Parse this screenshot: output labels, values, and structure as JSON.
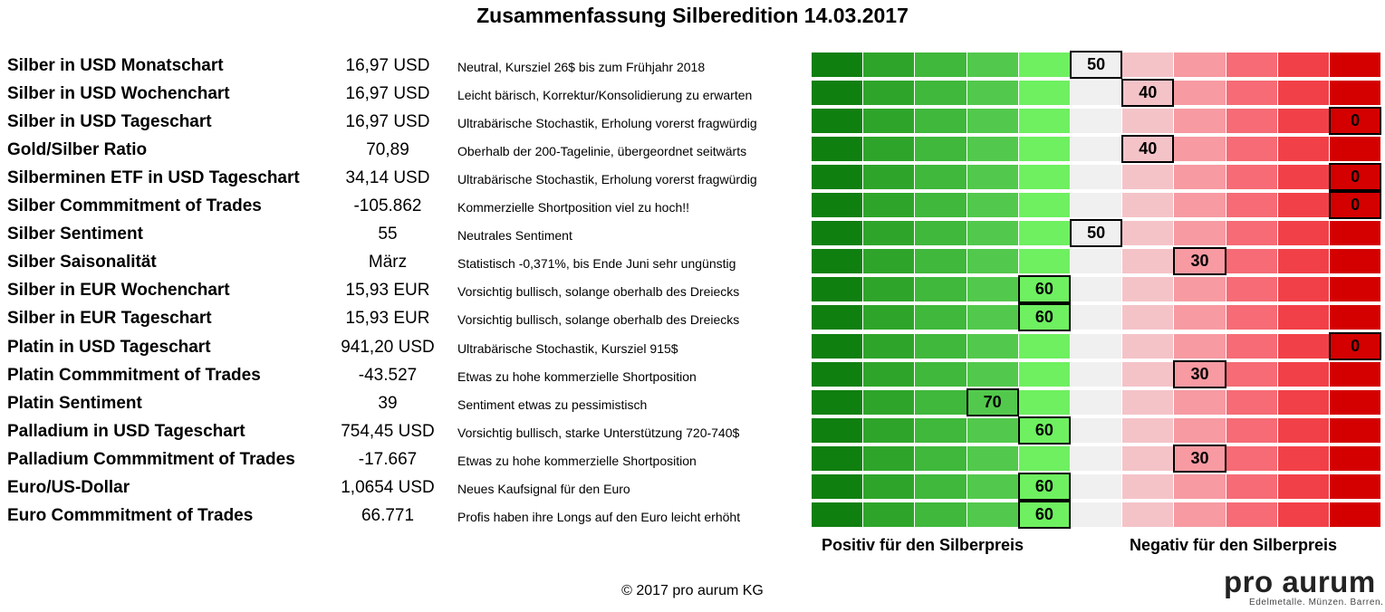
{
  "title": "Zusammenfassung Silberedition 14.03.2017",
  "scale_colors": [
    "#0f7f0f",
    "#2ea52a",
    "#3fb83b",
    "#52c94c",
    "#6ef060",
    "#f0f0f0",
    "#f4c3c8",
    "#f79aa2",
    "#f66b75",
    "#f24048",
    "#d40000"
  ],
  "scale_values": [
    100,
    90,
    80,
    70,
    60,
    50,
    40,
    30,
    20,
    10,
    0
  ],
  "rows": [
    {
      "label": "Silber in USD Monatschart",
      "value": "16,97 USD",
      "comment": "Neutral, Kursziel 26$ bis zum Frühjahr 2018",
      "score": "50"
    },
    {
      "label": "Silber in USD Wochenchart",
      "value": "16,97 USD",
      "comment": "Leicht bärisch, Korrektur/Konsolidierung zu erwarten",
      "score": "40"
    },
    {
      "label": "Silber in USD Tageschart",
      "value": "16,97 USD",
      "comment": "Ultrabärische Stochastik, Erholung vorerst fragwürdig",
      "score": "0"
    },
    {
      "label": "Gold/Silber Ratio",
      "value": "70,89",
      "comment": "Oberhalb der 200-Tagelinie, übergeordnet seitwärts",
      "score": "40"
    },
    {
      "label": "Silberminen ETF in USD Tageschart",
      "value": "34,14 USD",
      "comment": "Ultrabärische Stochastik, Erholung vorerst fragwürdig",
      "score": "0"
    },
    {
      "label": "Silber Commmitment of Trades",
      "value": "-105.862",
      "comment": "Kommerzielle Shortposition viel zu hoch!!",
      "score": "0"
    },
    {
      "label": "Silber Sentiment",
      "value": "55",
      "comment": "Neutrales Sentiment",
      "score": "50"
    },
    {
      "label": "Silber Saisonalität",
      "value": "März",
      "comment": "Statistisch -0,371%, bis Ende Juni sehr ungünstig",
      "score": "30"
    },
    {
      "label": "Silber in EUR Wochenchart",
      "value": "15,93 EUR",
      "comment": "Vorsichtig bullisch, solange oberhalb des Dreiecks",
      "score": "60"
    },
    {
      "label": "Silber in EUR Tageschart",
      "value": "15,93 EUR",
      "comment": "Vorsichtig bullisch, solange oberhalb des Dreiecks",
      "score": "60"
    },
    {
      "label": "Platin in USD Tageschart",
      "value": "941,20 USD",
      "comment": "Ultrabärische Stochastik, Kursziel 915$",
      "score": "0"
    },
    {
      "label": "Platin Commmitment of Trades",
      "value": "-43.527",
      "comment": "Etwas zu hohe kommerzielle Shortposition",
      "score": "30"
    },
    {
      "label": "Platin Sentiment",
      "value": "39",
      "comment": "Sentiment etwas zu pessimistisch",
      "score": "70"
    },
    {
      "label": "Palladium in USD Tageschart",
      "value": "754,45 USD",
      "comment": "Vorsichtig bullisch, starke Unterstützung 720-740$",
      "score": "60"
    },
    {
      "label": "Palladium Commmitment of Trades",
      "value": "-17.667",
      "comment": "Etwas zu hohe kommerzielle Shortposition",
      "score": "30"
    },
    {
      "label": "Euro/US-Dollar",
      "value": "1,0654 USD",
      "comment": "Neues Kaufsignal für den Euro",
      "score": "60"
    },
    {
      "label": "Euro Commmitment of Trades",
      "value": "66.771",
      "comment": "Profis haben ihre Longs auf den Euro leicht erhöht",
      "score": "60"
    }
  ],
  "legend": {
    "positive": "Positiv für den Silberpreis",
    "negative": "Negativ für den Silberpreis"
  },
  "copyright": "© 2017 pro aurum KG",
  "logo": {
    "name": "pro aurum",
    "tagline": "Edelmetalle. Münzen. Barren."
  }
}
